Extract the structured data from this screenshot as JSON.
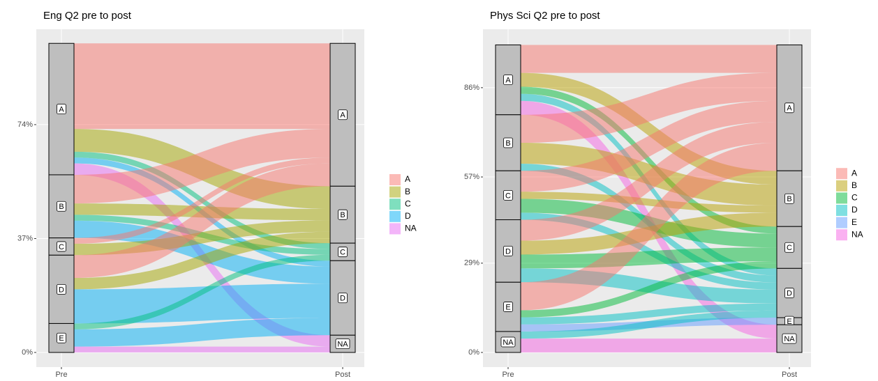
{
  "chart_data": [
    {
      "type": "alluvial",
      "title": "Eng Q2 pre to post",
      "x": [
        "Pre",
        "Post"
      ],
      "pre_strata": [
        "A",
        "B",
        "C",
        "D",
        "E"
      ],
      "post_strata": [
        "A",
        "B",
        "C",
        "D",
        "NA"
      ],
      "series": [
        {
          "name": "A",
          "color": "#F8766D"
        },
        {
          "name": "B",
          "color": "#A3A500"
        },
        {
          "name": "C",
          "color": "#00BF7D"
        },
        {
          "name": "D",
          "color": "#00B0F6"
        },
        {
          "name": "NA",
          "color": "#E76BF3"
        }
      ],
      "flows": [
        {
          "from": "A",
          "to": "A",
          "value": 27.8
        },
        {
          "from": "A",
          "to": "B",
          "value": 7.4
        },
        {
          "from": "A",
          "to": "C",
          "value": 1.9
        },
        {
          "from": "A",
          "to": "D",
          "value": 1.9
        },
        {
          "from": "A",
          "to": "NA",
          "value": 3.7
        },
        {
          "from": "B",
          "to": "A",
          "value": 9.3
        },
        {
          "from": "B",
          "to": "B",
          "value": 3.7
        },
        {
          "from": "B",
          "to": "C",
          "value": 1.9
        },
        {
          "from": "B",
          "to": "D",
          "value": 5.6
        },
        {
          "from": "C",
          "to": "A",
          "value": 1.9
        },
        {
          "from": "C",
          "to": "B",
          "value": 3.7
        },
        {
          "from": "D",
          "to": "A",
          "value": 7.4
        },
        {
          "from": "D",
          "to": "B",
          "value": 3.7
        },
        {
          "from": "D",
          "to": "D",
          "value": 11.1
        },
        {
          "from": "E",
          "to": "C",
          "value": 1.9
        },
        {
          "from": "E",
          "to": "D",
          "value": 5.6
        },
        {
          "from": "E",
          "to": "NA",
          "value": 1.9
        }
      ],
      "ylim": [
        0,
        100
      ],
      "yticks": [
        {
          "value": 0,
          "label": "0%"
        },
        {
          "value": 37,
          "label": "37%"
        },
        {
          "value": 74,
          "label": "74%"
        }
      ],
      "grid": true
    },
    {
      "type": "alluvial",
      "title": "Phys Sci Q2 pre to post",
      "x": [
        "Pre",
        "Post"
      ],
      "pre_strata": [
        "A",
        "B",
        "C",
        "D",
        "E",
        "NA"
      ],
      "post_strata": [
        "A",
        "B",
        "C",
        "D",
        "E",
        "NA"
      ],
      "series": [
        {
          "name": "A",
          "color": "#F8766D"
        },
        {
          "name": "B",
          "color": "#B79F00"
        },
        {
          "name": "C",
          "color": "#00BA38"
        },
        {
          "name": "D",
          "color": "#00BFC4"
        },
        {
          "name": "E",
          "color": "#619CFF"
        },
        {
          "name": "NA",
          "color": "#F564E3"
        }
      ],
      "flows": [
        {
          "from": "A",
          "to": "A",
          "value": 9.1
        },
        {
          "from": "A",
          "to": "B",
          "value": 4.5
        },
        {
          "from": "A",
          "to": "C",
          "value": 2.3
        },
        {
          "from": "A",
          "to": "D",
          "value": 2.3
        },
        {
          "from": "A",
          "to": "NA",
          "value": 4.5
        },
        {
          "from": "B",
          "to": "A",
          "value": 9.1
        },
        {
          "from": "B",
          "to": "B",
          "value": 6.8
        },
        {
          "from": "B",
          "to": "D",
          "value": 2.3
        },
        {
          "from": "C",
          "to": "A",
          "value": 6.8
        },
        {
          "from": "C",
          "to": "B",
          "value": 2.3
        },
        {
          "from": "C",
          "to": "C",
          "value": 4.5
        },
        {
          "from": "C",
          "to": "D",
          "value": 2.3
        },
        {
          "from": "D",
          "to": "A",
          "value": 6.8
        },
        {
          "from": "D",
          "to": "B",
          "value": 4.5
        },
        {
          "from": "D",
          "to": "C",
          "value": 4.5
        },
        {
          "from": "D",
          "to": "D",
          "value": 4.5
        },
        {
          "from": "E",
          "to": "A",
          "value": 9.1
        },
        {
          "from": "E",
          "to": "C",
          "value": 2.3
        },
        {
          "from": "E",
          "to": "D",
          "value": 2.3
        },
        {
          "from": "E",
          "to": "E",
          "value": 2.3
        },
        {
          "from": "NA",
          "to": "D",
          "value": 2.3
        },
        {
          "from": "NA",
          "to": "NA",
          "value": 4.5
        }
      ],
      "ylim": [
        0,
        100
      ],
      "yticks": [
        {
          "value": 0,
          "label": "0%"
        },
        {
          "value": 29,
          "label": "29%"
        },
        {
          "value": 57,
          "label": "57%"
        },
        {
          "value": 86,
          "label": "86%"
        }
      ],
      "grid": true
    }
  ]
}
